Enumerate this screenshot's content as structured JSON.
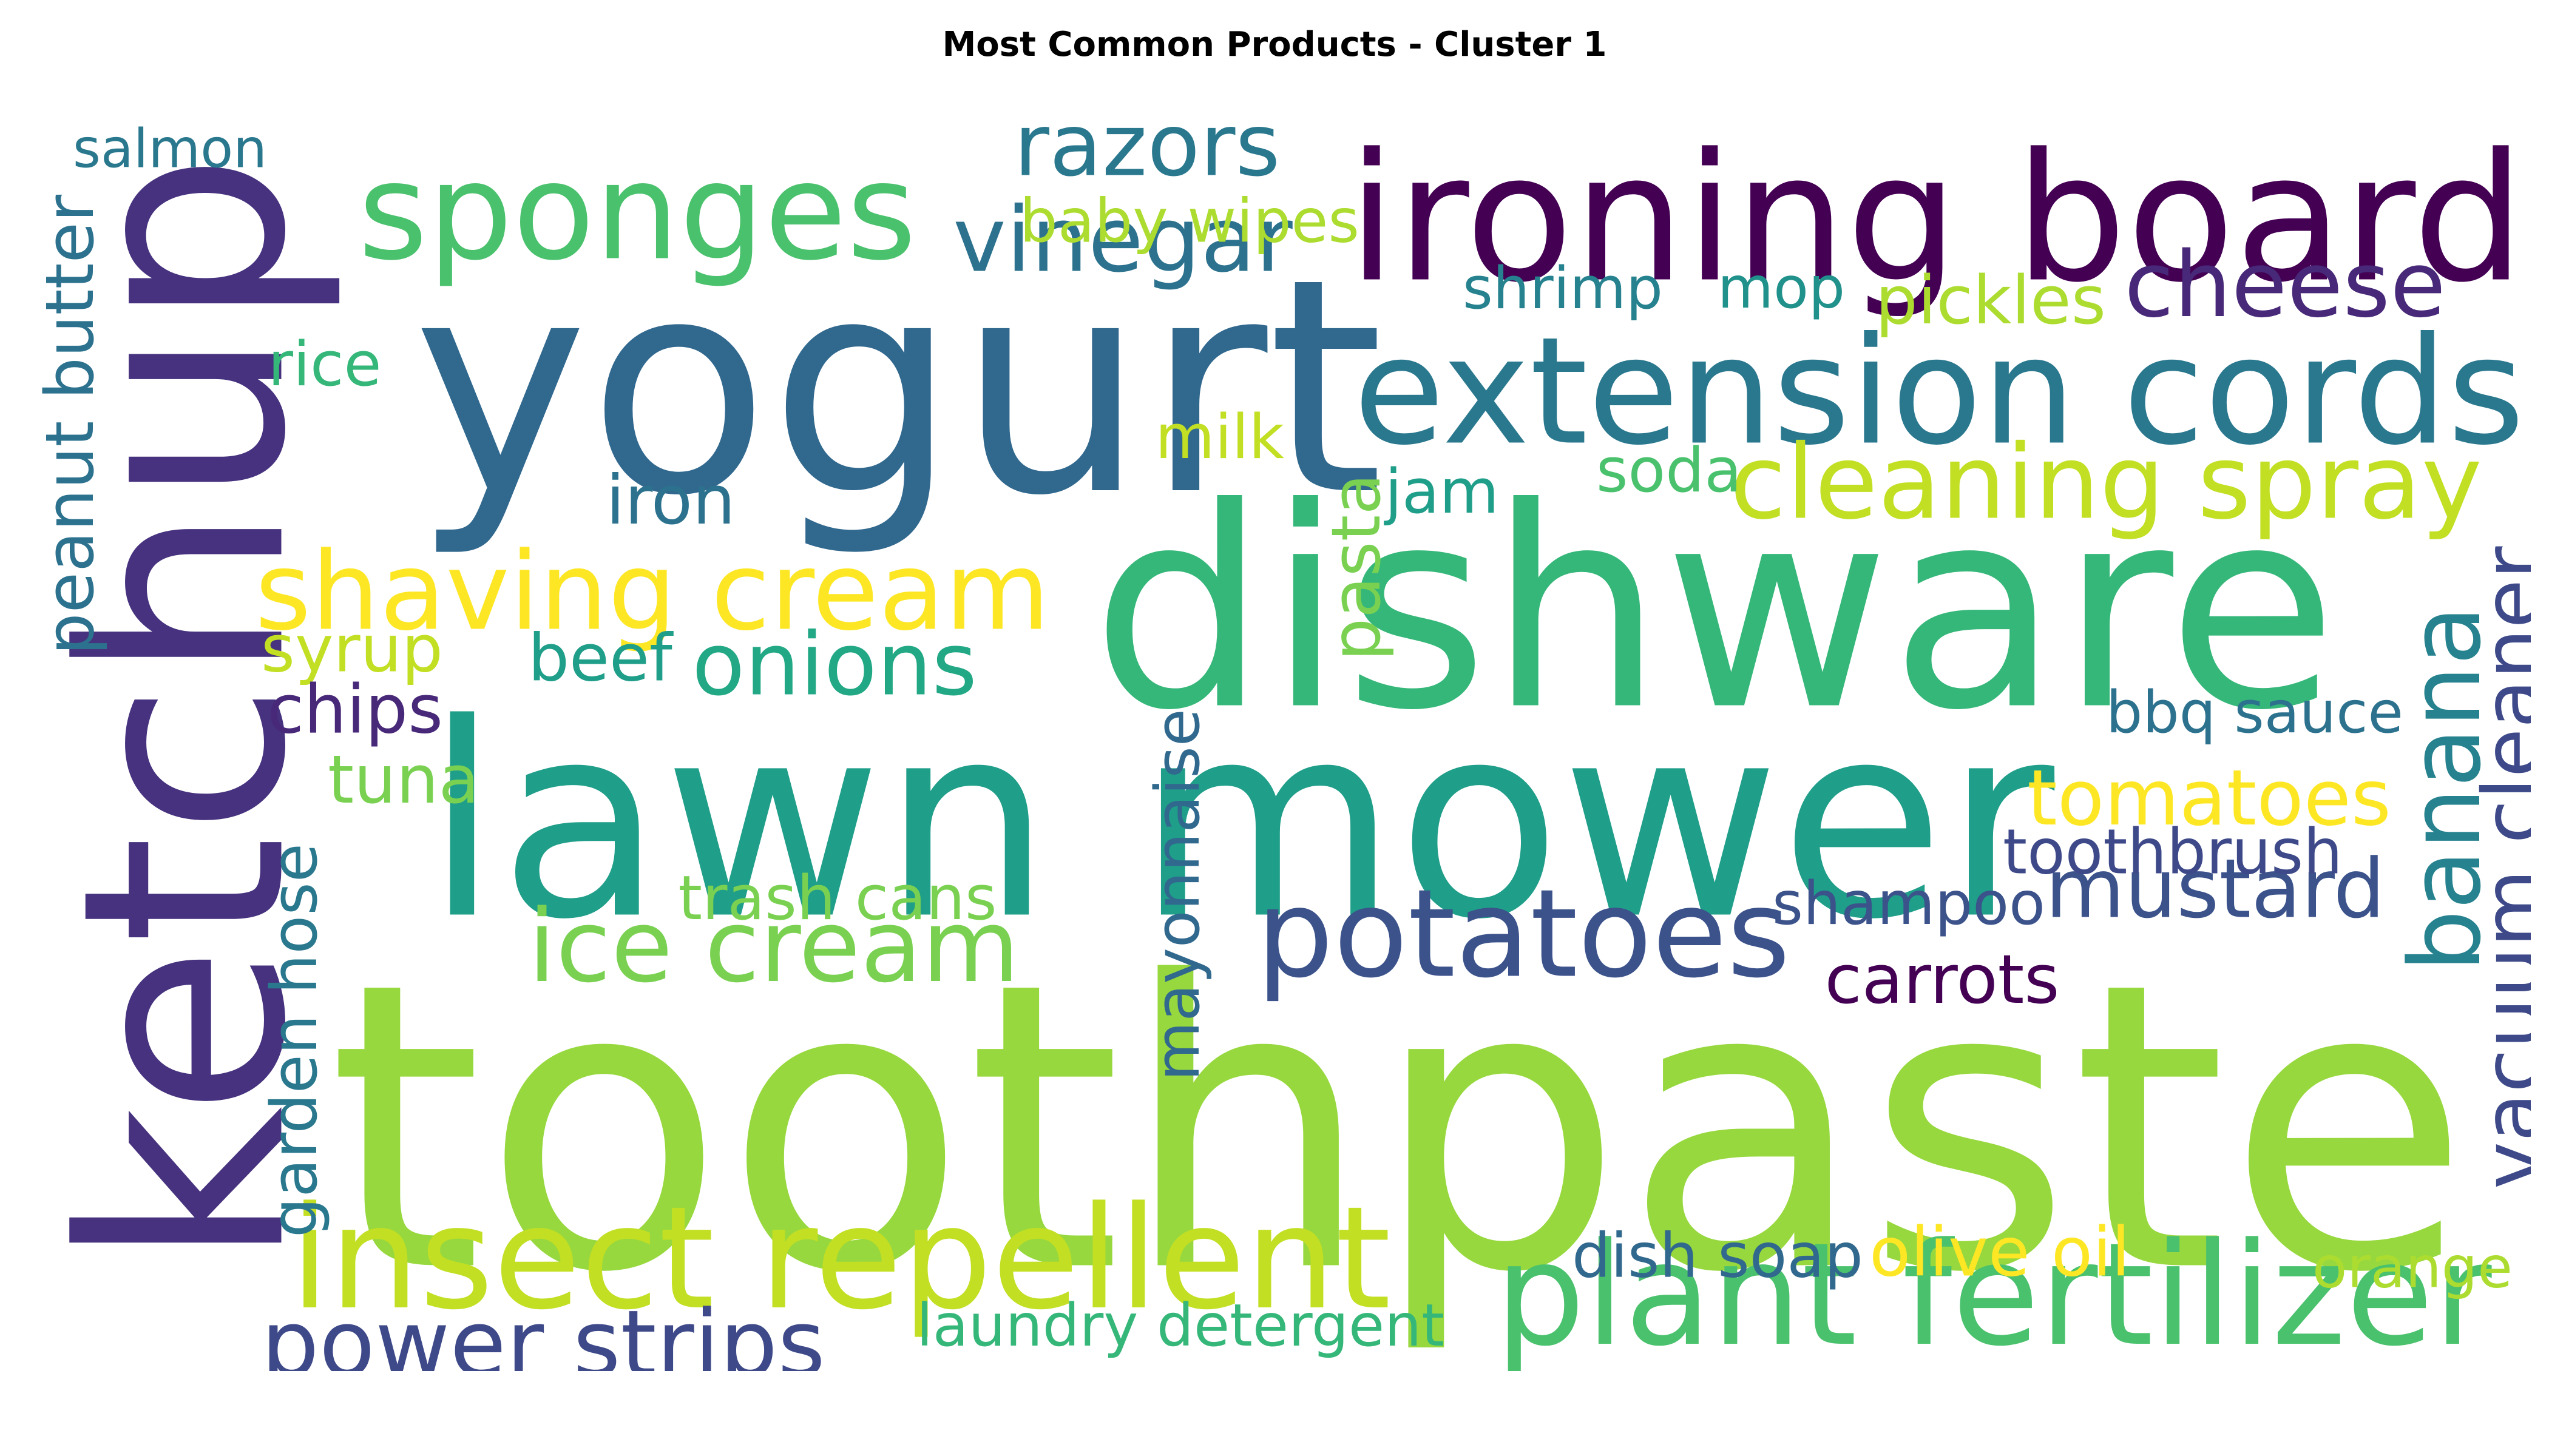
{
  "chart_data": {
    "type": "wordcloud",
    "title": "Most Common Products - Cluster 1",
    "words": [
      {
        "text": "toothpaste",
        "color": "#97d83e"
      },
      {
        "text": "ketchup",
        "color": "#46327e"
      },
      {
        "text": "yogurt",
        "color": "#31688e"
      },
      {
        "text": "dishware",
        "color": "#35b779"
      },
      {
        "text": "lawn mower",
        "color": "#1f9e89"
      },
      {
        "text": "ironing board",
        "color": "#440154"
      },
      {
        "text": "extension cords",
        "color": "#2a788e"
      },
      {
        "text": "sponges",
        "color": "#4ac16d"
      },
      {
        "text": "insect repellent",
        "color": "#c2df23"
      },
      {
        "text": "plant fertilizer",
        "color": "#4ac16d"
      },
      {
        "text": "shaving cream",
        "color": "#fde725"
      },
      {
        "text": "potatoes",
        "color": "#3b528b"
      },
      {
        "text": "ice cream",
        "color": "#7ad151"
      },
      {
        "text": "cleaning spray",
        "color": "#c2df23"
      },
      {
        "text": "vacuum cleaner",
        "color": "#3e4989"
      },
      {
        "text": "banana",
        "color": "#26828e"
      },
      {
        "text": "razors",
        "color": "#2a788e"
      },
      {
        "text": "vinegar",
        "color": "#2c728e"
      },
      {
        "text": "cheese",
        "color": "#482878"
      },
      {
        "text": "power strips",
        "color": "#3e4989"
      },
      {
        "text": "onions",
        "color": "#22a884"
      },
      {
        "text": "mustard",
        "color": "#3b528b"
      },
      {
        "text": "tomatoes",
        "color": "#fde725"
      },
      {
        "text": "laundry detergent",
        "color": "#35b779"
      },
      {
        "text": "dish soap",
        "color": "#31688e"
      },
      {
        "text": "olive oil",
        "color": "#fde725"
      },
      {
        "text": "orange",
        "color": "#addc30"
      },
      {
        "text": "salmon",
        "color": "#2a788e"
      },
      {
        "text": "baby wipes",
        "color": "#addc30"
      },
      {
        "text": "shrimp",
        "color": "#26828e"
      },
      {
        "text": "mop",
        "color": "#21918c"
      },
      {
        "text": "pickles",
        "color": "#addc30"
      },
      {
        "text": "peanut butter",
        "color": "#2c728e"
      },
      {
        "text": "rice",
        "color": "#35b779"
      },
      {
        "text": "milk",
        "color": "#c2df23"
      },
      {
        "text": "iron",
        "color": "#2c728e"
      },
      {
        "text": "jam",
        "color": "#1f9e89"
      },
      {
        "text": "soda",
        "color": "#4ac16d"
      },
      {
        "text": "pasta",
        "color": "#7ad151"
      },
      {
        "text": "syrup",
        "color": "#c2df23"
      },
      {
        "text": "beef",
        "color": "#1f9e89"
      },
      {
        "text": "chips",
        "color": "#482878"
      },
      {
        "text": "tuna",
        "color": "#7ad151"
      },
      {
        "text": "garden hose",
        "color": "#2a788e"
      },
      {
        "text": "trash cans",
        "color": "#7ad151"
      },
      {
        "text": "mayonnaise",
        "color": "#31688e"
      },
      {
        "text": "shampoo",
        "color": "#3b528b"
      },
      {
        "text": "carrots",
        "color": "#440154"
      },
      {
        "text": "bbq sauce",
        "color": "#2c728e"
      },
      {
        "text": "toothbrush",
        "color": "#3e4989"
      }
    ]
  }
}
